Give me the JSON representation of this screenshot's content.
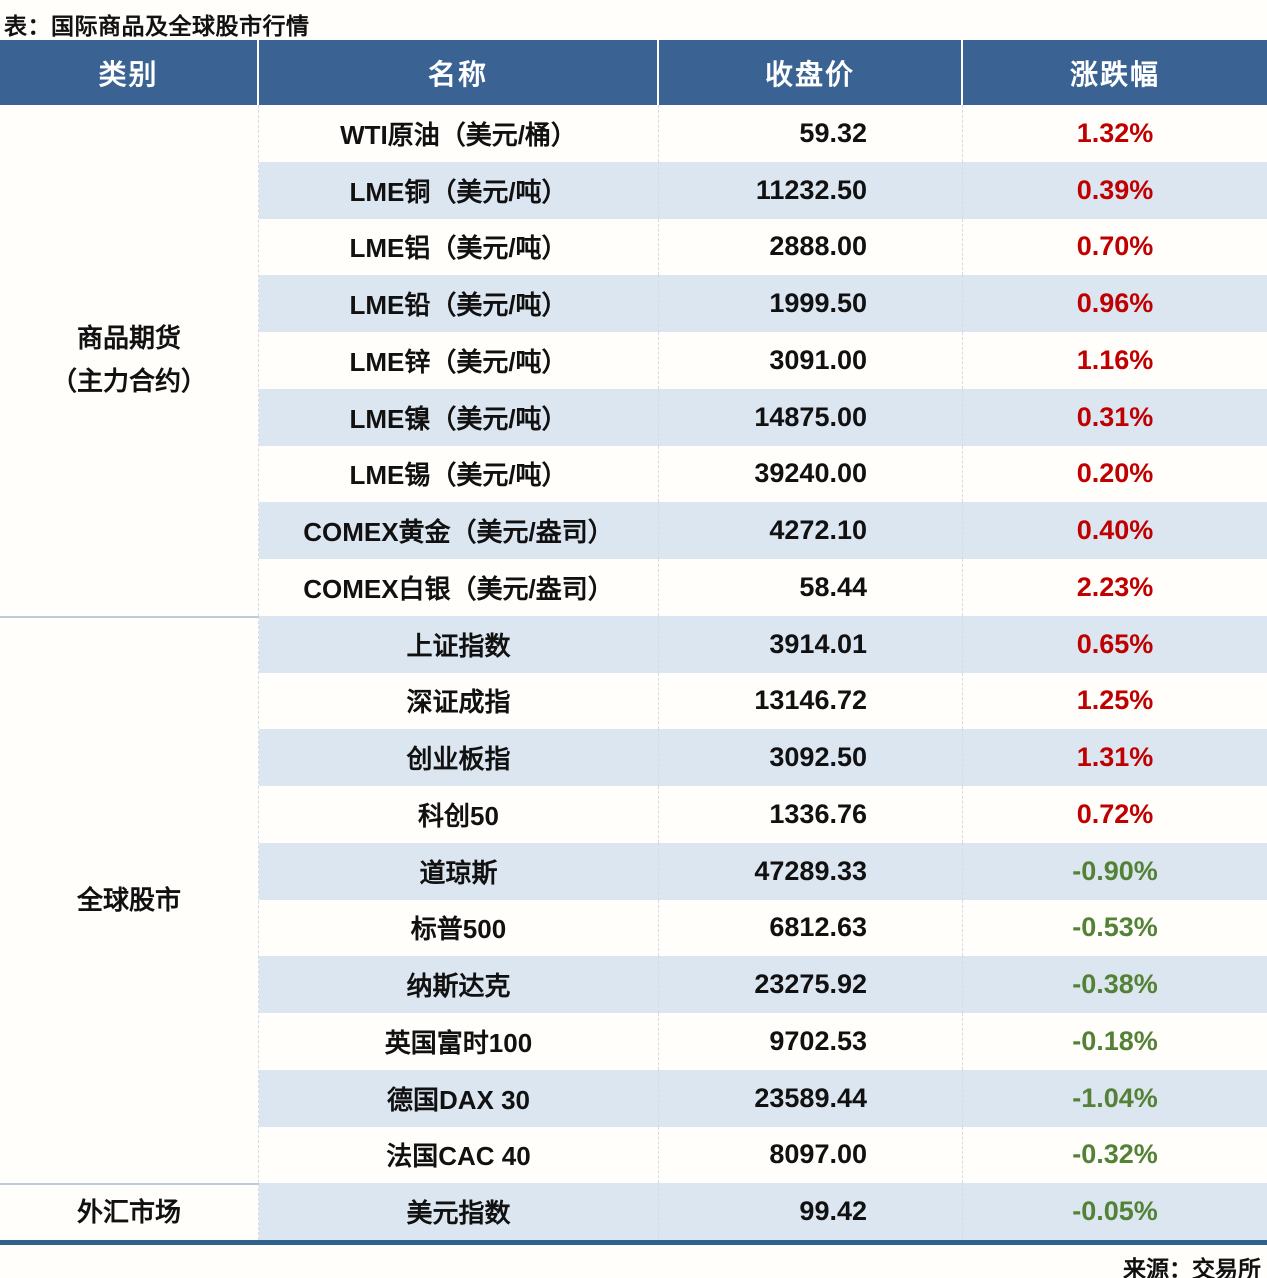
{
  "title": "表：国际商品及全球股市行情",
  "source": "来源：交易所",
  "colors": {
    "header_bg": "#3a6394",
    "header_text": "#ffffff",
    "stripe_bg": "#dce6f1",
    "plain_bg": "#fffefa",
    "up_red": "#c00000",
    "down_green": "#538135",
    "bottom_border": "#31618f"
  },
  "table": {
    "headers": [
      "类别",
      "名称",
      "收盘价",
      "涨跌幅"
    ],
    "sections": [
      {
        "label_lines": [
          "商品期货",
          "（主力合约）"
        ],
        "row_count": 9
      },
      {
        "label_lines": [
          "全球股市"
        ],
        "row_count": 10
      },
      {
        "label_lines": [
          "外汇市场"
        ],
        "row_count": 1
      }
    ],
    "rows": [
      {
        "name": "WTI原油（美元/桶）",
        "close": "59.32",
        "change": "1.32%"
      },
      {
        "name": "LME铜（美元/吨）",
        "close": "11232.50",
        "change": "0.39%"
      },
      {
        "name": "LME铝（美元/吨）",
        "close": "2888.00",
        "change": "0.70%"
      },
      {
        "name": "LME铅（美元/吨）",
        "close": "1999.50",
        "change": "0.96%"
      },
      {
        "name": "LME锌（美元/吨）",
        "close": "3091.00",
        "change": "1.16%"
      },
      {
        "name": "LME镍（美元/吨）",
        "close": "14875.00",
        "change": "0.31%"
      },
      {
        "name": "LME锡（美元/吨）",
        "close": "39240.00",
        "change": "0.20%"
      },
      {
        "name": "COMEX黄金（美元/盎司）",
        "close": "4272.10",
        "change": "0.40%"
      },
      {
        "name": "COMEX白银（美元/盎司）",
        "close": "58.44",
        "change": "2.23%"
      },
      {
        "name": "上证指数",
        "close": "3914.01",
        "change": "0.65%"
      },
      {
        "name": "深证成指",
        "close": "13146.72",
        "change": "1.25%"
      },
      {
        "name": "创业板指",
        "close": "3092.50",
        "change": "1.31%"
      },
      {
        "name": "科创50",
        "close": "1336.76",
        "change": "0.72%"
      },
      {
        "name": "道琼斯",
        "close": "47289.33",
        "change": "-0.90%"
      },
      {
        "name": "标普500",
        "close": "6812.63",
        "change": "-0.53%"
      },
      {
        "name": "纳斯达克",
        "close": "23275.92",
        "change": "-0.38%"
      },
      {
        "name": "英国富时100",
        "close": "9702.53",
        "change": "-0.18%"
      },
      {
        "name": "德国DAX 30",
        "close": "23589.44",
        "change": "-1.04%"
      },
      {
        "name": "法国CAC 40",
        "close": "8097.00",
        "change": "-0.32%"
      },
      {
        "name": "美元指数",
        "close": "99.42",
        "change": "-0.05%"
      }
    ]
  },
  "chart_data": {
    "type": "table",
    "title": "表：国际商品及全球股市行情",
    "columns": [
      "类别",
      "名称",
      "收盘价",
      "涨跌幅"
    ],
    "rows": [
      [
        "商品期货（主力合约）",
        "WTI原油（美元/桶）",
        59.32,
        "1.32%"
      ],
      [
        "商品期货（主力合约）",
        "LME铜（美元/吨）",
        11232.5,
        "0.39%"
      ],
      [
        "商品期货（主力合约）",
        "LME铝（美元/吨）",
        2888.0,
        "0.70%"
      ],
      [
        "商品期货（主力合约）",
        "LME铅（美元/吨）",
        1999.5,
        "0.96%"
      ],
      [
        "商品期货（主力合约）",
        "LME锌（美元/吨）",
        3091.0,
        "1.16%"
      ],
      [
        "商品期货（主力合约）",
        "LME镍（美元/吨）",
        14875.0,
        "0.31%"
      ],
      [
        "商品期货（主力合约）",
        "LME锡（美元/吨）",
        39240.0,
        "0.20%"
      ],
      [
        "商品期货（主力合约）",
        "COMEX黄金（美元/盎司）",
        4272.1,
        "0.40%"
      ],
      [
        "商品期货（主力合约）",
        "COMEX白银（美元/盎司）",
        58.44,
        "2.23%"
      ],
      [
        "全球股市",
        "上证指数",
        3914.01,
        "0.65%"
      ],
      [
        "全球股市",
        "深证成指",
        13146.72,
        "1.25%"
      ],
      [
        "全球股市",
        "创业板指",
        3092.5,
        "1.31%"
      ],
      [
        "全球股市",
        "科创50",
        1336.76,
        "0.72%"
      ],
      [
        "全球股市",
        "道琼斯",
        47289.33,
        "-0.90%"
      ],
      [
        "全球股市",
        "标普500",
        6812.63,
        "-0.53%"
      ],
      [
        "全球股市",
        "纳斯达克",
        23275.92,
        "-0.38%"
      ],
      [
        "全球股市",
        "英国富时100",
        9702.53,
        "-0.18%"
      ],
      [
        "全球股市",
        "德国DAX 30",
        23589.44,
        "-1.04%"
      ],
      [
        "全球股市",
        "法国CAC 40",
        8097.0,
        "-0.32%"
      ],
      [
        "外汇市场",
        "美元指数",
        99.42,
        "-0.05%"
      ]
    ],
    "source": "来源：交易所",
    "notes": "positive changes shown in red, negative changes shown in green"
  }
}
